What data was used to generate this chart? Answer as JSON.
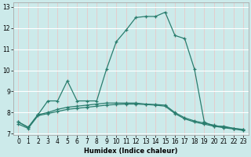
{
  "line1_x": [
    0,
    1,
    2,
    3,
    4,
    5,
    6,
    7,
    8,
    9,
    10,
    11,
    12,
    13,
    14,
    15,
    16,
    17,
    18,
    19,
    20,
    21,
    22,
    23
  ],
  "line1_y": [
    7.55,
    7.3,
    7.9,
    8.55,
    8.55,
    9.5,
    8.55,
    8.55,
    8.55,
    10.05,
    11.35,
    11.9,
    12.5,
    12.55,
    12.55,
    12.75,
    11.65,
    11.5,
    10.05,
    7.55,
    7.35,
    7.35,
    7.25,
    7.2
  ],
  "line2_x": [
    0,
    1,
    2,
    3,
    4,
    5,
    6,
    7,
    8,
    9,
    10,
    11,
    12,
    13,
    14,
    15,
    16,
    17,
    18,
    19,
    20,
    21,
    22,
    23
  ],
  "line2_y": [
    7.55,
    7.3,
    7.9,
    8.0,
    8.15,
    8.25,
    8.3,
    8.35,
    8.4,
    8.45,
    8.45,
    8.45,
    8.45,
    8.4,
    8.38,
    8.35,
    8.0,
    7.75,
    7.6,
    7.5,
    7.4,
    7.3,
    7.25,
    7.18
  ],
  "line3_x": [
    0,
    1,
    2,
    3,
    4,
    5,
    6,
    7,
    8,
    9,
    10,
    11,
    12,
    13,
    14,
    15,
    16,
    17,
    18,
    19,
    20,
    21,
    22,
    23
  ],
  "line3_y": [
    7.45,
    7.25,
    7.85,
    7.95,
    8.05,
    8.15,
    8.2,
    8.25,
    8.3,
    8.35,
    8.38,
    8.4,
    8.4,
    8.38,
    8.35,
    8.3,
    7.95,
    7.7,
    7.55,
    7.45,
    7.35,
    7.28,
    7.22,
    7.15
  ],
  "color": "#2a7d6e",
  "bg_color": "#cceaea",
  "grid_color_h": "#ffffff",
  "grid_color_v": "#e8c8c8",
  "xlabel": "Humidex (Indice chaleur)",
  "xlim": [
    -0.5,
    23.5
  ],
  "ylim": [
    6.95,
    13.2
  ],
  "yticks": [
    7,
    8,
    9,
    10,
    11,
    12,
    13
  ],
  "xticks": [
    0,
    1,
    2,
    3,
    4,
    5,
    6,
    7,
    8,
    9,
    10,
    11,
    12,
    13,
    14,
    15,
    16,
    17,
    18,
    19,
    20,
    21,
    22,
    23
  ],
  "marker": "+",
  "markersize": 3.5,
  "linewidth": 0.9,
  "xlabel_fontsize": 6.0,
  "tick_fontsize": 5.5
}
